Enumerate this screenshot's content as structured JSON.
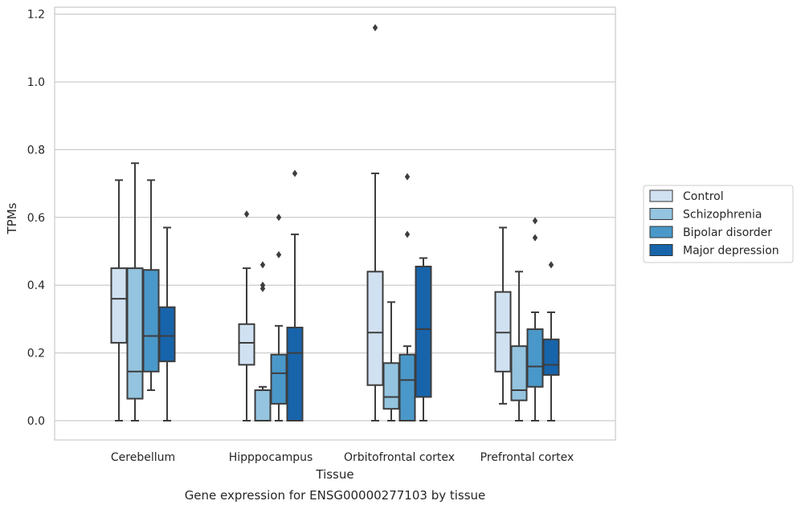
{
  "caption": "Gene expression for ENSG00000277103 by tissue",
  "chart_data": {
    "type": "box",
    "xlabel": "Tissue",
    "ylabel": "TPMs",
    "ylim": [
      -0.055,
      1.225
    ],
    "yticks": [
      0.0,
      0.2,
      0.4,
      0.6,
      0.8,
      1.0,
      1.2
    ],
    "ytick_labels": [
      "0.0",
      "0.2",
      "0.4",
      "0.6",
      "0.8",
      "1.0",
      "1.2"
    ],
    "grid": "horizontal",
    "legend_position": "right",
    "categories": [
      "Cerebellum",
      "Hipppocampus",
      "Orbitofrontal cortex",
      "Prefrontal cortex"
    ],
    "series": [
      {
        "name": "Control",
        "color": "#d0e1f2",
        "boxes": [
          {
            "whislo": 0.0,
            "q1": 0.23,
            "med": 0.36,
            "q3": 0.45,
            "whishi": 0.71,
            "fliers": []
          },
          {
            "whislo": 0.0,
            "q1": 0.165,
            "med": 0.23,
            "q3": 0.285,
            "whishi": 0.45,
            "fliers": [
              0.61
            ]
          },
          {
            "whislo": 0.0,
            "q1": 0.105,
            "med": 0.26,
            "q3": 0.44,
            "whishi": 0.73,
            "fliers": [
              1.16
            ]
          },
          {
            "whislo": 0.05,
            "q1": 0.145,
            "med": 0.26,
            "q3": 0.38,
            "whishi": 0.57,
            "fliers": []
          }
        ]
      },
      {
        "name": "Schizophrenia",
        "color": "#94c4df",
        "boxes": [
          {
            "whislo": 0.0,
            "q1": 0.065,
            "med": 0.145,
            "q3": 0.45,
            "whishi": 0.76,
            "fliers": []
          },
          {
            "whislo": 0.0,
            "q1": 0.0,
            "med": 0.0,
            "q3": 0.09,
            "whishi": 0.1,
            "fliers": [
              0.39,
              0.4,
              0.46
            ]
          },
          {
            "whislo": 0.0,
            "q1": 0.035,
            "med": 0.07,
            "q3": 0.17,
            "whishi": 0.35,
            "fliers": []
          },
          {
            "whislo": 0.0,
            "q1": 0.06,
            "med": 0.09,
            "q3": 0.22,
            "whishi": 0.44,
            "fliers": []
          }
        ]
      },
      {
        "name": "Bipolar disorder",
        "color": "#4a98c9",
        "boxes": [
          {
            "whislo": 0.09,
            "q1": 0.145,
            "med": 0.25,
            "q3": 0.445,
            "whishi": 0.71,
            "fliers": []
          },
          {
            "whislo": 0.0,
            "q1": 0.05,
            "med": 0.14,
            "q3": 0.195,
            "whishi": 0.28,
            "fliers": [
              0.49,
              0.6
            ]
          },
          {
            "whislo": 0.0,
            "q1": 0.0,
            "med": 0.12,
            "q3": 0.195,
            "whishi": 0.22,
            "fliers": [
              0.55,
              0.72
            ]
          },
          {
            "whislo": 0.0,
            "q1": 0.1,
            "med": 0.16,
            "q3": 0.27,
            "whishi": 0.32,
            "fliers": [
              0.54,
              0.59
            ]
          }
        ]
      },
      {
        "name": "Major depression",
        "color": "#1764ab",
        "boxes": [
          {
            "whislo": 0.0,
            "q1": 0.175,
            "med": 0.25,
            "q3": 0.335,
            "whishi": 0.57,
            "fliers": []
          },
          {
            "whislo": 0.0,
            "q1": 0.0,
            "med": 0.2,
            "q3": 0.275,
            "whishi": 0.55,
            "fliers": [
              0.73
            ]
          },
          {
            "whislo": 0.0,
            "q1": 0.07,
            "med": 0.27,
            "q3": 0.455,
            "whishi": 0.48,
            "fliers": []
          },
          {
            "whislo": 0.0,
            "q1": 0.135,
            "med": 0.165,
            "q3": 0.24,
            "whishi": 0.32,
            "fliers": [
              0.46
            ]
          }
        ]
      }
    ]
  }
}
